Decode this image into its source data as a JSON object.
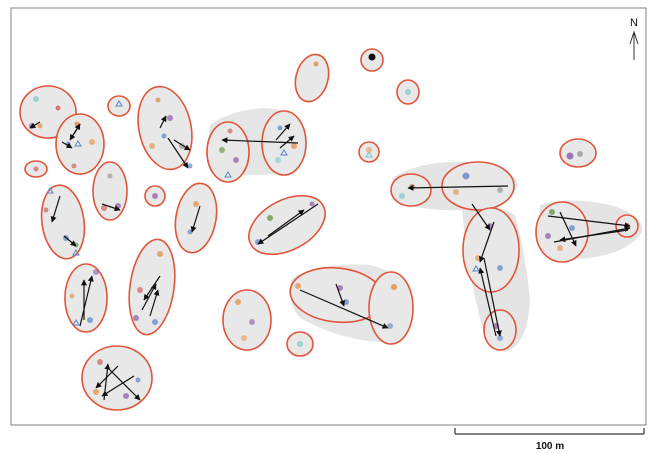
{
  "north_label": "N",
  "scale": {
    "label": "100 m",
    "meters": 100
  },
  "colors": {
    "cluster_outline": "#e0553a",
    "territory_fill": "#dcdcdc",
    "cluster_fill": "#e8e8e8",
    "arrow": "#111111",
    "frame": "#808080",
    "marker_blue": "#5a84c8",
    "marker_orange": "#e58a3a",
    "marker_purple": "#8a5aa8",
    "marker_green": "#6a9a4a",
    "marker_red": "#c84a4a",
    "marker_cyan": "#7ac8c8",
    "marker_gray": "#999999"
  },
  "clusters": [
    {
      "id": "c01"
    },
    {
      "id": "c02"
    },
    {
      "id": "c03"
    },
    {
      "id": "c04"
    },
    {
      "id": "c05"
    },
    {
      "id": "c06"
    },
    {
      "id": "c07"
    },
    {
      "id": "c08"
    },
    {
      "id": "c09"
    },
    {
      "id": "c10"
    },
    {
      "id": "c11"
    },
    {
      "id": "c12"
    },
    {
      "id": "c13"
    },
    {
      "id": "c14"
    },
    {
      "id": "c15"
    },
    {
      "id": "c16"
    },
    {
      "id": "c17"
    },
    {
      "id": "c18"
    },
    {
      "id": "c19"
    },
    {
      "id": "c20"
    },
    {
      "id": "c21"
    },
    {
      "id": "c22"
    },
    {
      "id": "c23"
    },
    {
      "id": "c24"
    },
    {
      "id": "c25"
    },
    {
      "id": "c26"
    },
    {
      "id": "c27"
    },
    {
      "id": "c28"
    },
    {
      "id": "c29"
    },
    {
      "id": "c30"
    }
  ]
}
